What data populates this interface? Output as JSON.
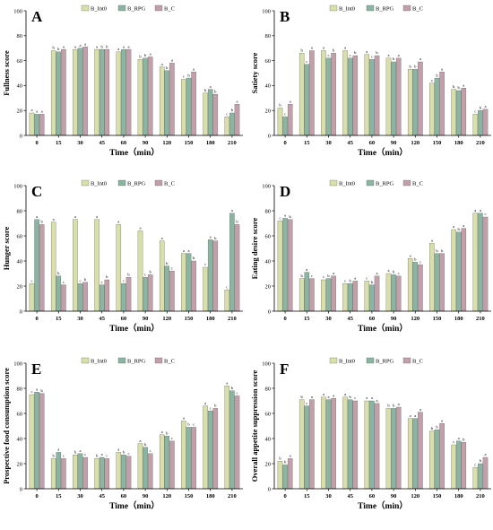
{
  "colors": {
    "B_Int0": "#d9dfa8",
    "B_RPG": "#8ab5a2",
    "B_C": "#c2a0aa"
  },
  "chart_data": [
    {
      "type": "bar",
      "panel": "A",
      "categories": [
        "0",
        "15",
        "30",
        "45",
        "60",
        "90",
        "120",
        "150",
        "180",
        "210"
      ],
      "xlabel": "Time（min）",
      "ylabel": "Fullness score",
      "ylim": [
        0,
        100
      ],
      "yticks": [
        "0",
        "20",
        "40",
        "60",
        "80",
        "100"
      ],
      "grid": false,
      "legend_position": "top",
      "series": [
        {
          "name": "B_Int0",
          "values": [
            18,
            68,
            69,
            69,
            67,
            61,
            55,
            45,
            34,
            15
          ],
          "letters": [
            "a",
            "b",
            "a",
            "a",
            "a",
            "b",
            "a",
            "c",
            "b",
            "c"
          ]
        },
        {
          "name": "B_RPG",
          "values": [
            17,
            67,
            70,
            69,
            69,
            62,
            52,
            46,
            37,
            18
          ],
          "letters": [
            "a",
            "b",
            "a",
            "b",
            "a",
            "b",
            "b",
            "b",
            "a",
            "b"
          ]
        },
        {
          "name": "B_C",
          "values": [
            17,
            69,
            71,
            69,
            69,
            63,
            58,
            51,
            33,
            25
          ],
          "letters": [
            "a",
            "a",
            "a",
            "b",
            "a",
            "a",
            "a",
            "a",
            "b",
            "a"
          ]
        }
      ]
    },
    {
      "type": "bar",
      "panel": "B",
      "categories": [
        "0",
        "15",
        "30",
        "45",
        "60",
        "90",
        "120",
        "150",
        "180",
        "210"
      ],
      "xlabel": "Time（min）",
      "ylabel": "Satiety score",
      "ylim": [
        0,
        100
      ],
      "yticks": [
        "0",
        "20",
        "40",
        "60",
        "80",
        "100"
      ],
      "grid": false,
      "legend_position": "top",
      "series": [
        {
          "name": "B_Int0",
          "values": [
            22,
            66,
            68,
            68,
            65,
            62,
            53,
            42,
            37,
            17
          ],
          "letters": [
            "b",
            "b",
            "a",
            "a",
            "a",
            "a",
            "b",
            "c",
            "b",
            "c"
          ]
        },
        {
          "name": "B_RPG",
          "values": [
            15,
            57,
            62,
            62,
            61,
            59,
            53,
            46,
            36,
            20
          ],
          "letters": [
            "c",
            "c",
            "c",
            "c",
            "c",
            "b",
            "b",
            "b",
            "b",
            "b"
          ]
        },
        {
          "name": "B_C",
          "values": [
            25,
            68,
            66,
            64,
            64,
            62,
            59,
            51,
            38,
            21
          ],
          "letters": [
            "a",
            "a",
            "b",
            "b",
            "b",
            "a",
            "a",
            "a",
            "a",
            "a"
          ]
        }
      ]
    },
    {
      "type": "bar",
      "panel": "C",
      "categories": [
        "0",
        "15",
        "30",
        "45",
        "60",
        "90",
        "120",
        "150",
        "180",
        "210"
      ],
      "xlabel": "Time（min）",
      "ylabel": "Hunger score",
      "ylim": [
        0,
        100
      ],
      "yticks": [
        "0",
        "20",
        "40",
        "60",
        "80",
        "100"
      ],
      "grid": false,
      "legend_position": "top",
      "series": [
        {
          "name": "B_Int0",
          "values": [
            22,
            71,
            73,
            73,
            69,
            64,
            56,
            46,
            35,
            17
          ],
          "letters": [
            "c",
            "a",
            "a",
            "a",
            "a",
            "a",
            "a",
            "a",
            "c",
            "c"
          ]
        },
        {
          "name": "B_RPG",
          "values": [
            73,
            28,
            22,
            21,
            22,
            27,
            36,
            46,
            57,
            78
          ],
          "letters": [
            "a",
            "b",
            "c",
            "c",
            "c",
            "c",
            "b",
            "a",
            "a",
            "a"
          ]
        },
        {
          "name": "B_C",
          "values": [
            69,
            21,
            23,
            25,
            27,
            29,
            32,
            40,
            56,
            69
          ],
          "letters": [
            "b",
            "c",
            "b",
            "b",
            "b",
            "b",
            "c",
            "b",
            "b",
            "b"
          ]
        }
      ]
    },
    {
      "type": "bar",
      "panel": "D",
      "categories": [
        "0",
        "15",
        "30",
        "45",
        "60",
        "90",
        "120",
        "150",
        "180",
        "210"
      ],
      "xlabel": "Time（min）",
      "ylabel": "Eating desire score",
      "ylim": [
        0,
        100
      ],
      "yticks": [
        "0",
        "20",
        "40",
        "60",
        "80",
        "100"
      ],
      "grid": false,
      "legend_position": "top",
      "series": [
        {
          "name": "B_Int0",
          "values": [
            72,
            26,
            25,
            22,
            24,
            30,
            42,
            54,
            65,
            78
          ],
          "letters": [
            "c",
            "b",
            "c",
            "c",
            "c",
            "a",
            "a",
            "a",
            "a",
            "a"
          ]
        },
        {
          "name": "B_RPG",
          "values": [
            74,
            31,
            26,
            22,
            21,
            29,
            39,
            46,
            63,
            78
          ],
          "letters": [
            "a",
            "a",
            "b",
            "b",
            "b",
            "b",
            "b",
            "b",
            "b",
            "a"
          ]
        },
        {
          "name": "B_C",
          "values": [
            73,
            26,
            28,
            24,
            28,
            28,
            37,
            46,
            66,
            75
          ],
          "letters": [
            "b",
            "c",
            "a",
            "a",
            "a",
            "c",
            "c",
            "b",
            "a",
            "c"
          ]
        }
      ]
    },
    {
      "type": "bar",
      "panel": "E",
      "categories": [
        "0",
        "15",
        "30",
        "45",
        "60",
        "90",
        "120",
        "150",
        "180",
        "210"
      ],
      "xlabel": "Time（min）",
      "ylabel": "Prospective food consumption score",
      "ylim": [
        0,
        100
      ],
      "yticks": [
        "0",
        "20",
        "40",
        "60",
        "80",
        "100"
      ],
      "grid": false,
      "legend_position": "top",
      "series": [
        {
          "name": "B_Int0",
          "values": [
            75,
            24,
            27,
            24,
            29,
            36,
            43,
            54,
            66,
            82
          ],
          "letters": [
            "c",
            "b",
            "b",
            "b",
            "a",
            "a",
            "a",
            "a",
            "a",
            "a"
          ]
        },
        {
          "name": "B_RPG",
          "values": [
            77,
            29,
            28,
            25,
            27,
            33,
            42,
            49,
            62,
            78
          ],
          "letters": [
            "a",
            "a",
            "a",
            "a",
            "b",
            "b",
            "b",
            "b",
            "c",
            "b"
          ]
        },
        {
          "name": "B_C",
          "values": [
            76,
            24,
            25,
            24,
            26,
            28,
            38,
            49,
            64,
            74
          ],
          "letters": [
            "b",
            "c",
            "c",
            "c",
            "c",
            "c",
            "c",
            "c",
            "b",
            "c"
          ]
        }
      ]
    },
    {
      "type": "bar",
      "panel": "F",
      "categories": [
        "0",
        "15",
        "30",
        "45",
        "60",
        "90",
        "120",
        "150",
        "180",
        "210"
      ],
      "xlabel": "Time（min）",
      "ylabel": "Overall appetite suppression score",
      "ylim": [
        0,
        100
      ],
      "yticks": [
        "0",
        "20",
        "40",
        "60",
        "80",
        "100"
      ],
      "grid": false,
      "legend_position": "top",
      "series": [
        {
          "name": "B_Int0",
          "values": [
            22,
            71,
            73,
            73,
            70,
            64,
            56,
            46,
            35,
            17
          ],
          "letters": [
            "b",
            "b",
            "a",
            "a",
            "a",
            "b",
            "a",
            "b",
            "c",
            "c"
          ]
        },
        {
          "name": "B_RPG",
          "values": [
            19,
            66,
            71,
            71,
            70,
            64,
            56,
            47,
            38,
            20
          ],
          "letters": [
            "b",
            "c",
            "a",
            "b",
            "a",
            "b",
            "a",
            "b",
            "a",
            "b"
          ]
        },
        {
          "name": "B_C",
          "values": [
            24,
            71,
            72,
            70,
            68,
            65,
            61,
            52,
            37,
            25
          ],
          "letters": [
            "a",
            "a",
            "a",
            "c",
            "a",
            "a",
            "a",
            "a",
            "b",
            "a"
          ]
        }
      ]
    }
  ]
}
